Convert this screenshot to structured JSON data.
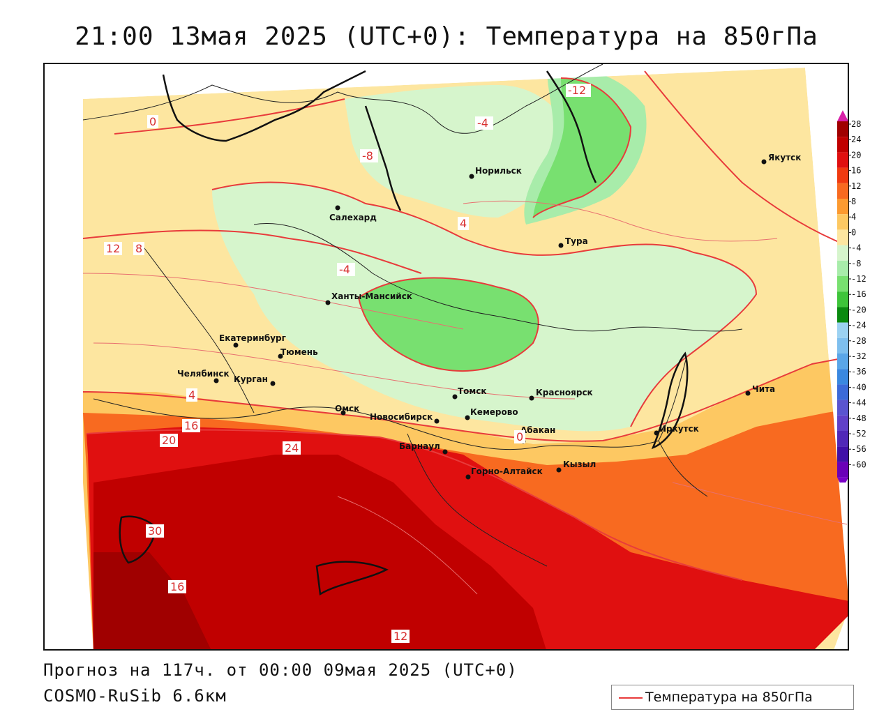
{
  "title": "21:00 13мая 2025 (UTC+0): Температура на 850гПа",
  "footer": {
    "forecast": "Прогноз на 117ч. от 00:00 09мая 2025 (UTC+0)",
    "model": "COSMO-RuSib 6.6км"
  },
  "legend": {
    "label": "Температура на 850гПа",
    "line_color": "#e83b3b"
  },
  "colorbar": {
    "ticks": [
      "28",
      "24",
      "20",
      "16",
      "12",
      "8",
      "4",
      "0",
      "-4",
      "-8",
      "-12",
      "-16",
      "-20",
      "-24",
      "-28",
      "-32",
      "-36",
      "-40",
      "-44",
      "-48",
      "-52",
      "-56",
      "-60"
    ],
    "colors": [
      "#a00000",
      "#c00000",
      "#e01010",
      "#f03a10",
      "#f86a20",
      "#fc9a30",
      "#fdc862",
      "#fde6a0",
      "#d6f5cc",
      "#a8ecaa",
      "#78e070",
      "#3ec43a",
      "#0a8a10",
      "#9cd2f2",
      "#7ebfee",
      "#5aa6e8",
      "#3a88e0",
      "#3c6ad8",
      "#5a54d0",
      "#6040c8",
      "#5028b8",
      "#4010a8",
      "#6a00b8"
    ],
    "top_arrow_color": "#d820a8",
    "bottom_arrow_color": "#7a00c8"
  },
  "cities": [
    {
      "name": "Якутск"
    },
    {
      "name": "Норильск"
    },
    {
      "name": "Салехард"
    },
    {
      "name": "Тура"
    },
    {
      "name": "Ханты-Мансийск"
    },
    {
      "name": "Екатеринбург"
    },
    {
      "name": "Тюмень"
    },
    {
      "name": "Челябинск"
    },
    {
      "name": "Курган"
    },
    {
      "name": "Омск"
    },
    {
      "name": "Новосибирск"
    },
    {
      "name": "Томск"
    },
    {
      "name": "Кемерово"
    },
    {
      "name": "Красноярск"
    },
    {
      "name": "Абакан"
    },
    {
      "name": "Барнаул"
    },
    {
      "name": "Иркутск"
    },
    {
      "name": "Чита"
    },
    {
      "name": "Горно-Алтайск"
    },
    {
      "name": "Кызыл"
    }
  ],
  "isoline_labels": [
    "0",
    "-4",
    "-8",
    "-12",
    "4",
    "8",
    "12",
    "16",
    "20",
    "24",
    "30",
    "16",
    "12",
    "0",
    "-4",
    "4"
  ]
}
